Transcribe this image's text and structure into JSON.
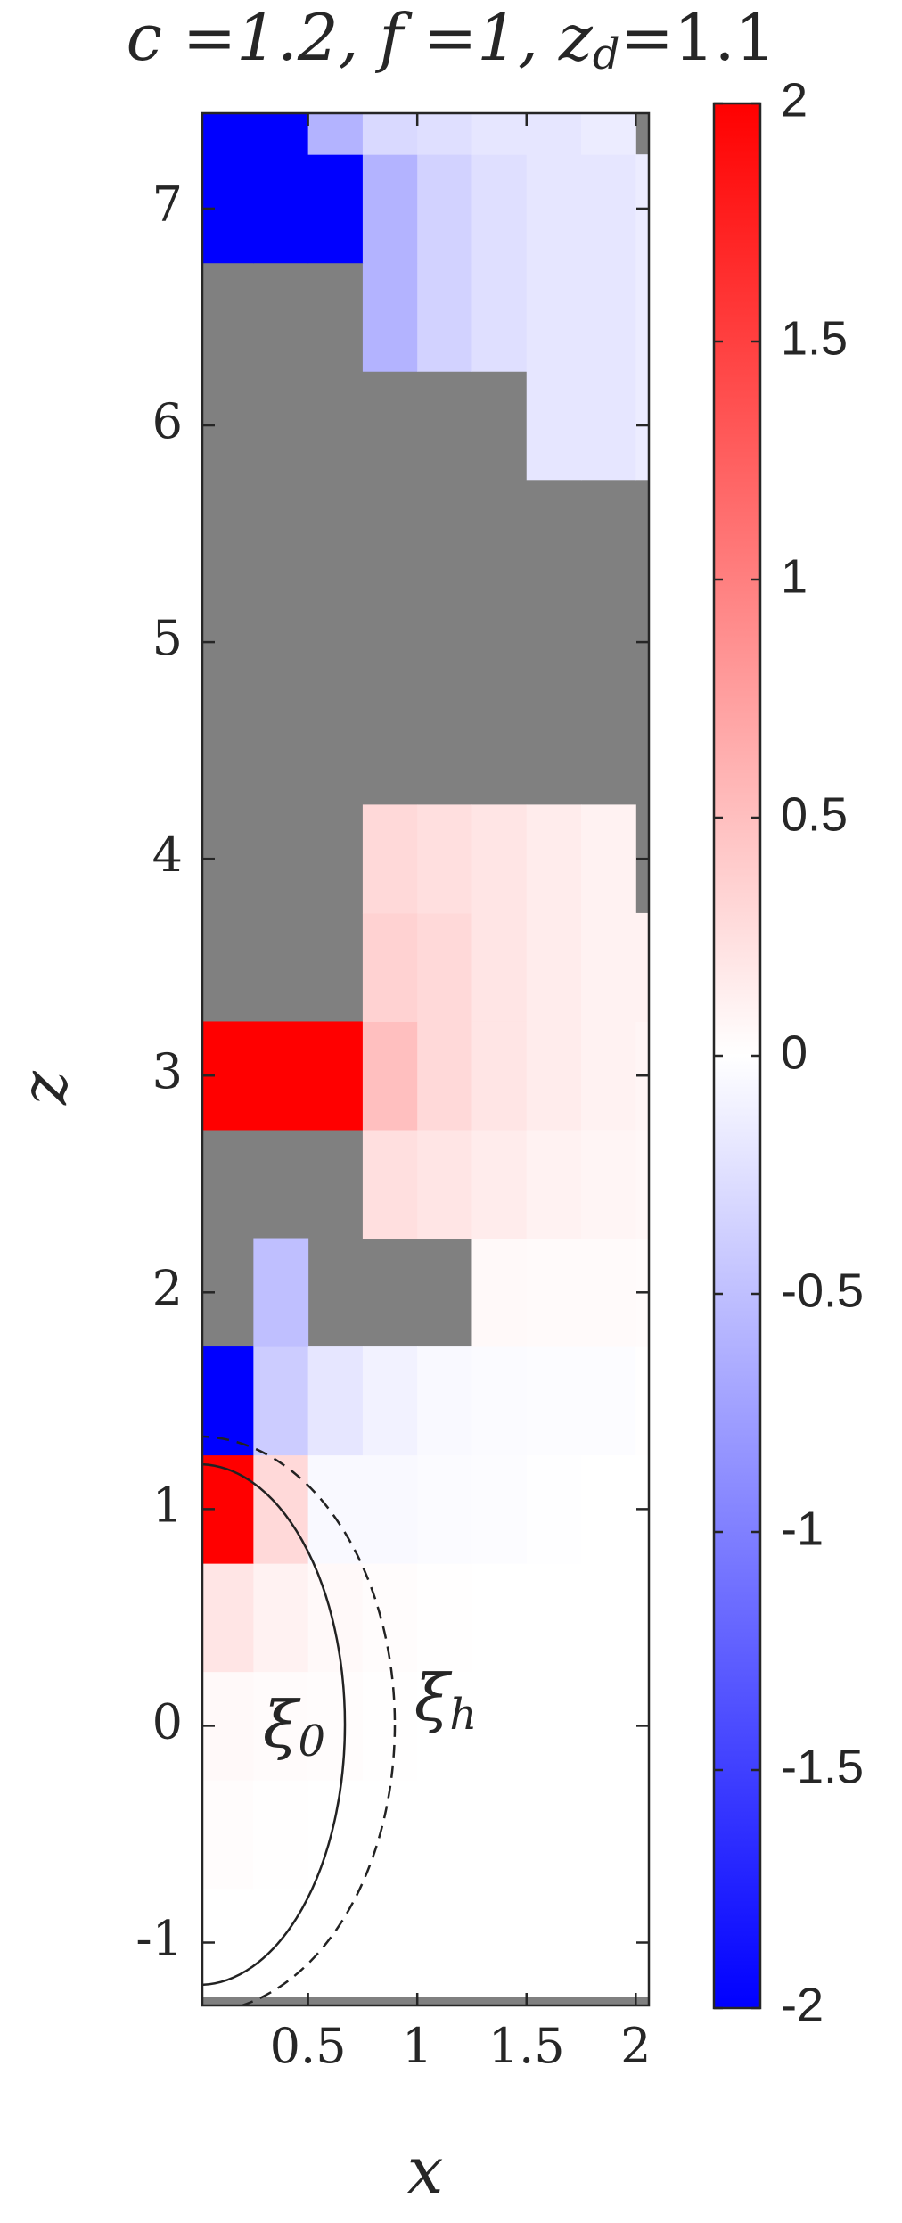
{
  "chart_data": {
    "type": "heatmap",
    "title": {
      "main": "c =1.2, f =1, z",
      "sub": "d",
      "end": "=1.1"
    },
    "x_label": "x",
    "y_label": "z",
    "xlim": [
      0.016,
      2.06
    ],
    "ylim": [
      -1.29,
      7.44
    ],
    "xticks": [
      0.5,
      1,
      1.5,
      2
    ],
    "yticks": [
      -1,
      0,
      1,
      2,
      3,
      4,
      5,
      6,
      7
    ],
    "clim": [
      -2,
      2
    ],
    "cticks": [
      -2,
      -1.5,
      -1,
      -0.5,
      0,
      0.5,
      1,
      1.5,
      2
    ],
    "colormap": {
      "low": "#0000ff",
      "mid": "#ffffff",
      "high": "#ff0000",
      "missing": "#808080"
    },
    "x": [
      0.125,
      0.375,
      0.625,
      0.875,
      1.125,
      1.375,
      1.625,
      1.875,
      2.125
    ],
    "y": [
      -1.0,
      -0.5,
      0.0,
      0.5,
      1.0,
      1.5,
      2.0,
      2.5,
      3.0,
      3.5,
      4.0,
      4.5,
      5.0,
      5.5,
      6.0,
      6.5,
      7.0,
      7.5
    ],
    "values": [
      [
        0,
        0,
        0,
        0,
        0,
        0,
        0,
        0,
        0
      ],
      [
        0.02,
        0.01,
        0,
        0,
        0,
        0,
        0,
        0,
        0
      ],
      [
        0.05,
        0.03,
        0.02,
        0.01,
        0,
        0,
        0,
        0,
        0
      ],
      [
        0.2,
        0.1,
        0.05,
        0.02,
        0.01,
        0,
        0,
        0,
        0
      ],
      [
        2,
        0.3,
        -0.05,
        -0.05,
        -0.03,
        -0.02,
        -0.01,
        0,
        0
      ],
      [
        -2,
        -0.4,
        -0.2,
        -0.1,
        -0.05,
        -0.03,
        -0.02,
        -0.02,
        0.01
      ],
      [
        null,
        -0.5,
        null,
        null,
        null,
        0.05,
        0.04,
        0.04,
        0.03
      ],
      [
        null,
        null,
        null,
        0.25,
        0.2,
        0.15,
        0.1,
        0.08,
        0.06
      ],
      [
        2,
        2,
        2,
        0.5,
        0.3,
        0.2,
        0.15,
        0.1,
        0.08
      ],
      [
        null,
        null,
        null,
        0.35,
        0.3,
        0.2,
        0.15,
        0.1,
        0.1
      ],
      [
        null,
        null,
        null,
        0.3,
        0.25,
        0.2,
        0.15,
        0.1,
        null
      ],
      [
        null,
        null,
        null,
        null,
        null,
        null,
        null,
        null,
        null
      ],
      [
        null,
        null,
        null,
        null,
        null,
        null,
        null,
        null,
        null
      ],
      [
        null,
        null,
        null,
        null,
        null,
        null,
        null,
        null,
        null
      ],
      [
        null,
        null,
        null,
        null,
        null,
        null,
        -0.2,
        -0.2,
        -0.15
      ],
      [
        null,
        null,
        null,
        -0.6,
        -0.35,
        -0.25,
        -0.2,
        -0.2,
        -0.15
      ],
      [
        -2,
        -2,
        -2,
        -0.6,
        -0.35,
        -0.25,
        -0.2,
        -0.2,
        -0.15
      ],
      [
        -2,
        -2,
        -0.6,
        -0.3,
        -0.25,
        -0.2,
        -0.2,
        -0.15,
        null
      ]
    ],
    "annotations": [
      {
        "text": "ξ",
        "sub": "0"
      },
      {
        "text": "ξ",
        "sub": "h"
      }
    ]
  }
}
